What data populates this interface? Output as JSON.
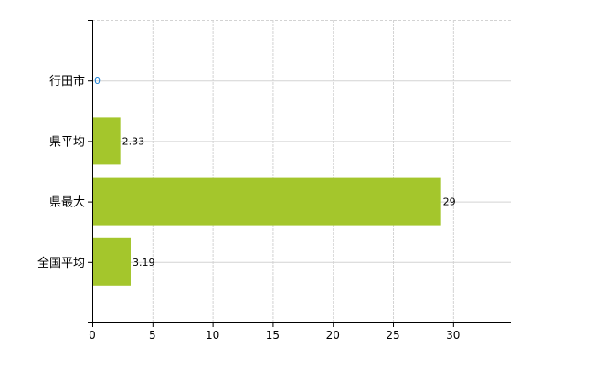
{
  "chart_data": {
    "type": "bar",
    "orientation": "horizontal",
    "categories": [
      "行田市",
      "県平均",
      "県最大",
      "全国平均"
    ],
    "values": [
      0,
      2.33,
      29,
      3.19
    ],
    "value_labels": [
      "0",
      "2.33",
      "29",
      "3.19"
    ],
    "title": "",
    "xlabel": "",
    "ylabel": "",
    "xlim": [
      0,
      34.8
    ],
    "xticks": [
      0,
      5,
      10,
      15,
      20,
      25,
      30
    ],
    "grid": true,
    "legend": "none",
    "colors": {
      "bar": "#a4c62c",
      "grid": "#d3d3d3",
      "axis": "#000000",
      "zero_label": "#1a7fd4"
    }
  }
}
